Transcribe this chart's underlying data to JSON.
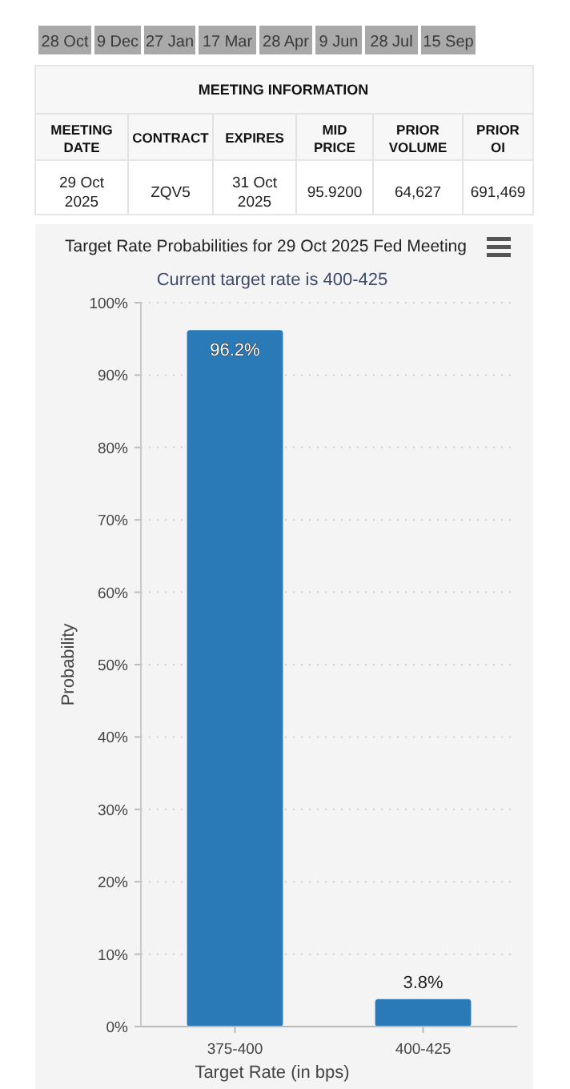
{
  "chart_data": {
    "type": "bar",
    "title": "Target Rate Probabilities for 29 Oct 2025 Fed Meeting",
    "subtitle": "Current target rate is 400-425",
    "xlabel": "Target Rate (in bps)",
    "ylabel": "Probability",
    "categories": [
      "375-400",
      "400-425"
    ],
    "values": [
      96.2,
      3.8
    ],
    "value_labels": [
      "96.2%",
      "3.8%"
    ],
    "color": "#2a7ab8",
    "ylim": [
      0,
      100
    ],
    "yticks": [
      {
        "value": 0,
        "label": "0%"
      },
      {
        "value": 10,
        "label": "10%"
      },
      {
        "value": 20,
        "label": "20%"
      },
      {
        "value": 30,
        "label": "30%"
      },
      {
        "value": 40,
        "label": "40%"
      },
      {
        "value": 50,
        "label": "50%"
      },
      {
        "value": 60,
        "label": "60%"
      },
      {
        "value": 70,
        "label": "70%"
      },
      {
        "value": 80,
        "label": "80%"
      },
      {
        "value": 90,
        "label": "90%"
      },
      {
        "value": 100,
        "label": "100%"
      }
    ],
    "grid": "y",
    "annotations": [
      "28 Oct",
      "9 Dec",
      "27 Jan",
      "17 Mar",
      "28 Apr",
      "9 Jun",
      "28 Jul",
      "15 Sep",
      "MEETING INFORMATION",
      "MEETING DATE",
      "CONTRACT",
      "EXPIRES",
      "MID PRICE",
      "PRIOR VOLUME",
      "PRIOR OI",
      "29 Oct 2025",
      "ZQV5",
      "31 Oct 2025",
      "95.9200",
      "64,627",
      "691,469"
    ]
  }
}
